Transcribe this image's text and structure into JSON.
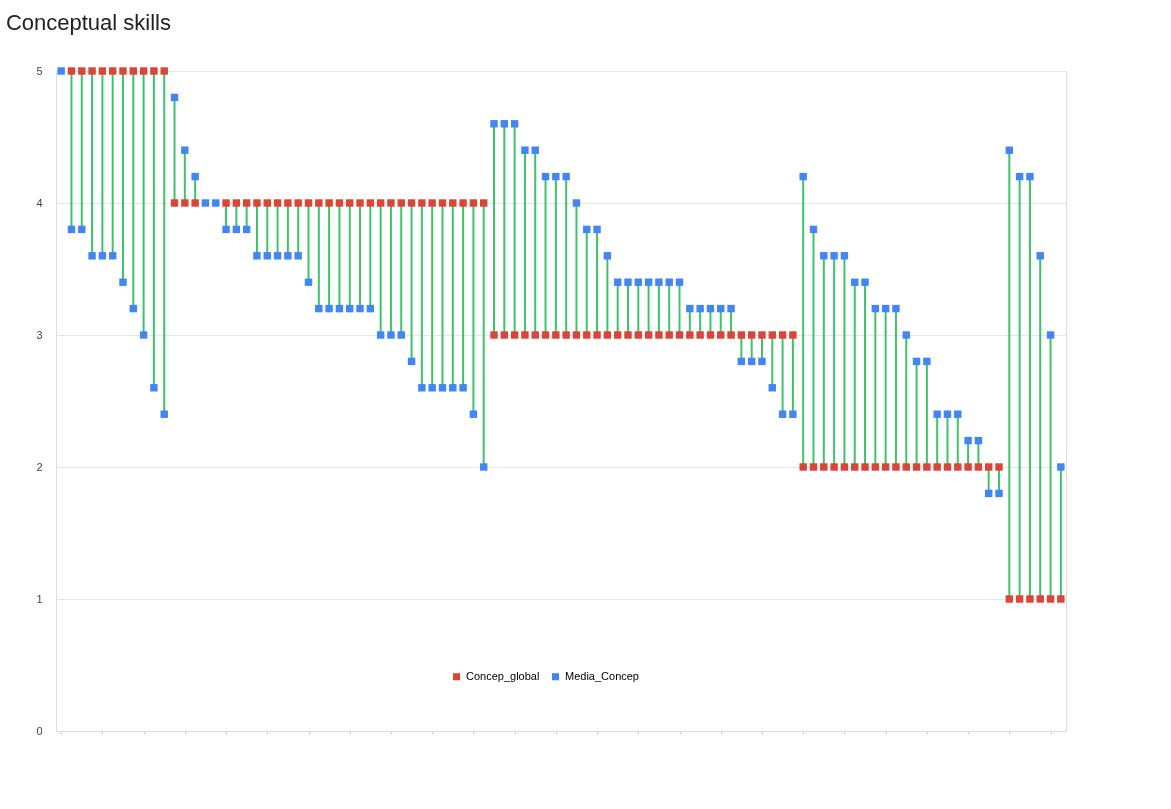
{
  "chart_data": {
    "type": "scatter",
    "title": "Conceptual skills",
    "categories": [
      null,
      null,
      null,
      null,
      null,
      null,
      null,
      null,
      null,
      null,
      null,
      null,
      null,
      null,
      null,
      null,
      null,
      null,
      null,
      null,
      null,
      null,
      null,
      null,
      null,
      null,
      null,
      null,
      null,
      null,
      null,
      null,
      null,
      null,
      null,
      null,
      null,
      null,
      null,
      null,
      null,
      null,
      null,
      null,
      null,
      null,
      null,
      null,
      null,
      null,
      null,
      null,
      null,
      null,
      null,
      null,
      null,
      null,
      null,
      null,
      null,
      null,
      null,
      null,
      null,
      null,
      null,
      null,
      null,
      null,
      null,
      null,
      null,
      null,
      null,
      null,
      null,
      null,
      null,
      null,
      null,
      null,
      null,
      null,
      null,
      null,
      null,
      null,
      null,
      null,
      null,
      null,
      null,
      null,
      null,
      null,
      null,
      null
    ],
    "series": [
      {
        "name": "Concep_global",
        "color": "#db4437",
        "values": [
          null,
          5,
          5,
          5,
          5,
          5,
          5,
          5,
          5,
          5,
          5,
          4,
          4,
          4,
          null,
          null,
          4,
          4,
          4,
          4,
          4,
          4,
          4,
          4,
          4,
          4,
          4,
          4,
          4,
          4,
          4,
          4,
          4,
          4,
          4,
          4,
          4,
          4,
          4,
          4,
          4,
          4,
          3,
          3,
          3,
          3,
          3,
          3,
          3,
          3,
          3,
          3,
          3,
          3,
          3,
          3,
          3,
          3,
          3,
          3,
          3,
          3,
          3,
          3,
          3,
          3,
          3,
          3,
          3,
          3,
          3,
          3,
          2,
          2,
          2,
          2,
          2,
          2,
          2,
          2,
          2,
          2,
          2,
          2,
          2,
          2,
          2,
          2,
          2,
          2,
          2,
          2,
          1,
          1,
          1,
          1,
          1,
          1
        ]
      },
      {
        "name": "Media_Concep",
        "color": "#4285f4",
        "values": [
          5,
          3.8,
          3.8,
          3.6,
          3.6,
          3.6,
          3.4,
          3.2,
          3.0,
          2.6,
          2.4,
          4.8,
          4.4,
          4.2,
          4,
          4,
          3.8,
          3.8,
          3.8,
          3.6,
          3.6,
          3.6,
          3.6,
          3.6,
          3.4,
          3.2,
          3.2,
          3.2,
          3.2,
          3.2,
          3.2,
          3.0,
          3.0,
          3.0,
          2.8,
          2.6,
          2.6,
          2.6,
          2.6,
          2.6,
          2.4,
          2.0,
          4.6,
          4.6,
          4.6,
          4.4,
          4.4,
          4.2,
          4.2,
          4.2,
          4.0,
          3.8,
          3.8,
          3.6,
          3.4,
          3.4,
          3.4,
          3.4,
          3.4,
          3.4,
          3.4,
          3.2,
          3.2,
          3.2,
          3.2,
          3.2,
          2.8,
          2.8,
          2.8,
          2.6,
          2.4,
          2.4,
          4.2,
          3.8,
          3.6,
          3.6,
          3.6,
          3.4,
          3.4,
          3.2,
          3.2,
          3.2,
          3.0,
          2.8,
          2.8,
          2.4,
          2.4,
          2.4,
          2.2,
          2.2,
          1.8,
          1.8,
          4.4,
          4.2,
          4.2,
          3.6,
          3.0,
          2.0
        ]
      }
    ],
    "ylim": [
      0,
      5
    ],
    "yticks": [
      0,
      1,
      2,
      3,
      4,
      5
    ],
    "grid": "y",
    "legend": "bottom",
    "marker": "square",
    "tick_labels": "y"
  }
}
